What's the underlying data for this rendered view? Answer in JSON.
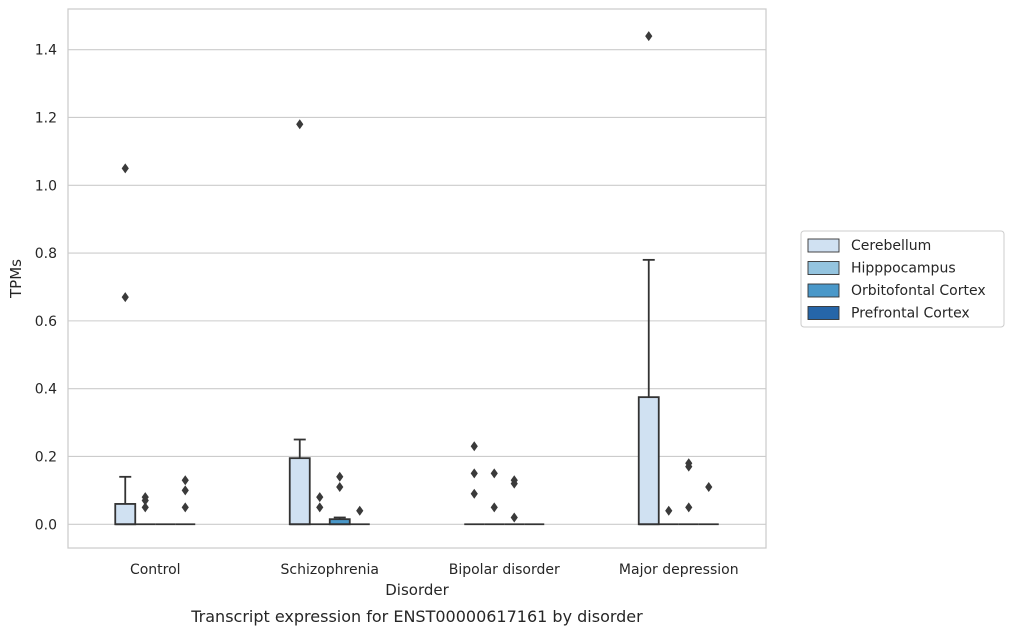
{
  "chart_data": {
    "type": "box",
    "title": "",
    "caption": "Transcript expression for ENST00000617161 by disorder",
    "xlabel": "Disorder",
    "ylabel": "TPMs",
    "categories": [
      "Control",
      "Schizophrenia",
      "Bipolar disorder",
      "Major depression"
    ],
    "ylim": [
      -0.07,
      1.52
    ],
    "yticks": [
      0.0,
      0.2,
      0.4,
      0.6,
      0.8,
      1.0,
      1.2,
      1.4
    ],
    "ytick_labels": [
      "0.0",
      "0.2",
      "0.4",
      "0.6",
      "0.8",
      "1.0",
      "1.2",
      "1.4"
    ],
    "grid": true,
    "legend_position": "right",
    "series": [
      {
        "name": "Cerebellum",
        "color": "#d0e1f2",
        "boxes": [
          {
            "q1": 0.0,
            "median": 0.0,
            "q3": 0.06,
            "whisker_low": 0.0,
            "whisker_high": 0.14,
            "outliers": [
              0.67,
              1.05
            ]
          },
          {
            "q1": 0.0,
            "median": 0.0,
            "q3": 0.195,
            "whisker_low": 0.0,
            "whisker_high": 0.25,
            "outliers": [
              1.18
            ]
          },
          {
            "q1": 0.0,
            "median": 0.0,
            "q3": 0.0,
            "whisker_low": 0.0,
            "whisker_high": 0.0,
            "outliers": [
              0.09,
              0.15,
              0.23
            ]
          },
          {
            "q1": 0.0,
            "median": 0.0,
            "q3": 0.375,
            "whisker_low": 0.0,
            "whisker_high": 0.78,
            "outliers": [
              1.44
            ]
          }
        ]
      },
      {
        "name": "Hipppocampus",
        "color": "#94c4df",
        "boxes": [
          {
            "q1": 0.0,
            "median": 0.0,
            "q3": 0.0,
            "whisker_low": 0.0,
            "whisker_high": 0.0,
            "outliers": [
              0.05,
              0.07,
              0.08
            ]
          },
          {
            "q1": 0.0,
            "median": 0.0,
            "q3": 0.0,
            "whisker_low": 0.0,
            "whisker_high": 0.0,
            "outliers": [
              0.05,
              0.08
            ]
          },
          {
            "q1": 0.0,
            "median": 0.0,
            "q3": 0.0,
            "whisker_low": 0.0,
            "whisker_high": 0.0,
            "outliers": [
              0.05,
              0.15
            ]
          },
          {
            "q1": 0.0,
            "median": 0.0,
            "q3": 0.0,
            "whisker_low": 0.0,
            "whisker_high": 0.0,
            "outliers": [
              0.04
            ]
          }
        ]
      },
      {
        "name": "Orbitofontal Cortex",
        "color": "#4a98c9",
        "boxes": [
          {
            "q1": 0.0,
            "median": 0.0,
            "q3": 0.0,
            "whisker_low": 0.0,
            "whisker_high": 0.0,
            "outliers": []
          },
          {
            "q1": 0.0,
            "median": 0.0,
            "q3": 0.015,
            "whisker_low": 0.0,
            "whisker_high": 0.02,
            "outliers": [
              0.11,
              0.14
            ]
          },
          {
            "q1": 0.0,
            "median": 0.0,
            "q3": 0.0,
            "whisker_low": 0.0,
            "whisker_high": 0.0,
            "outliers": [
              0.02,
              0.12,
              0.13
            ]
          },
          {
            "q1": 0.0,
            "median": 0.0,
            "q3": 0.0,
            "whisker_low": 0.0,
            "whisker_high": 0.0,
            "outliers": [
              0.05,
              0.17,
              0.18
            ]
          }
        ]
      },
      {
        "name": "Prefrontal Cortex",
        "color": "#2666a9",
        "boxes": [
          {
            "q1": 0.0,
            "median": 0.0,
            "q3": 0.0,
            "whisker_low": 0.0,
            "whisker_high": 0.0,
            "outliers": [
              0.05,
              0.1,
              0.13
            ]
          },
          {
            "q1": 0.0,
            "median": 0.0,
            "q3": 0.0,
            "whisker_low": 0.0,
            "whisker_high": 0.0,
            "outliers": [
              0.04
            ]
          },
          {
            "q1": 0.0,
            "median": 0.0,
            "q3": 0.0,
            "whisker_low": 0.0,
            "whisker_high": 0.0,
            "outliers": []
          },
          {
            "q1": 0.0,
            "median": 0.0,
            "q3": 0.0,
            "whisker_low": 0.0,
            "whisker_high": 0.0,
            "outliers": [
              0.11
            ]
          }
        ]
      }
    ]
  }
}
